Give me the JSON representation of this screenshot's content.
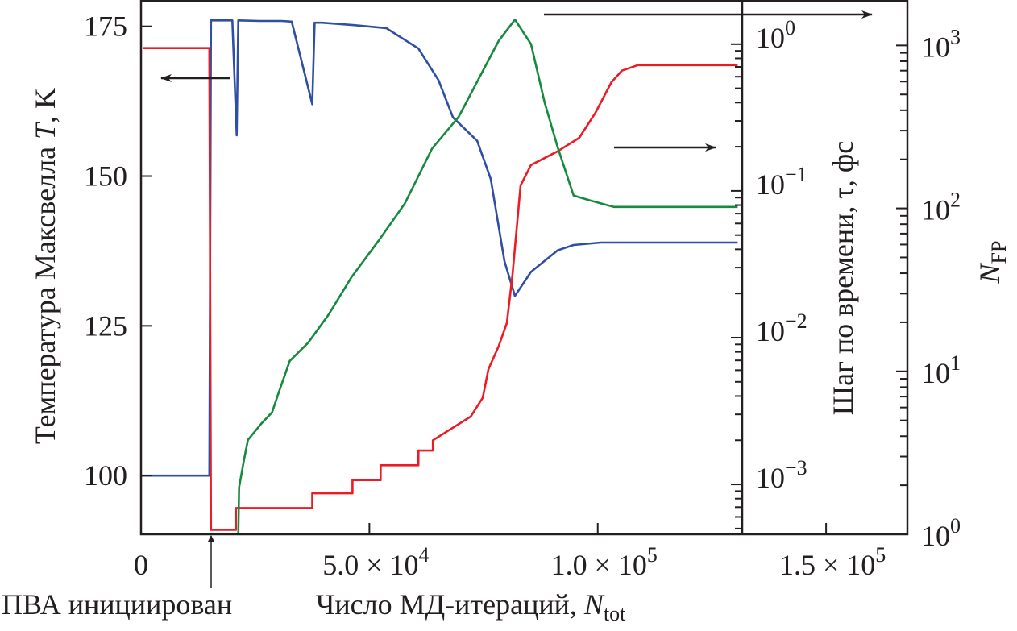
{
  "chart_data": {
    "type": "line",
    "x_axis": {
      "label": "Число МД-итераций, ",
      "label_var": "N",
      "label_sub": "tot",
      "range": [
        0,
        167800
      ],
      "ticks": [
        0,
        50000,
        100000,
        150000
      ],
      "tick_labels": [
        {
          "mant": "0",
          "exp": ""
        },
        {
          "mant": "5.0 × 10",
          "exp": "4"
        },
        {
          "mant": "1.0 × 10",
          "exp": "5"
        },
        {
          "mant": "1.5 × 10",
          "exp": "5"
        }
      ]
    },
    "y_left": {
      "label": "Температура Максвелла ",
      "label_var": "T",
      "label_unit": ", K",
      "range": [
        90.2,
        179.4
      ],
      "ticks": [
        100,
        125,
        150,
        175
      ],
      "tick_labels": [
        "100",
        "125",
        "150",
        "175"
      ]
    },
    "y_tau": {
      "label": "Шаг по времени, τ, фс",
      "scale": "log",
      "position_x": 131300,
      "range": [
        0.000457,
        2.0
      ],
      "ticks": [
        0.001,
        0.01,
        0.1,
        1
      ],
      "tick_labels": [
        {
          "mant": "10",
          "exp": "−3"
        },
        {
          "mant": "10",
          "exp": "−2"
        },
        {
          "mant": "10",
          "exp": "−1"
        },
        {
          "mant": "10",
          "exp": "0"
        }
      ]
    },
    "y_nfp": {
      "label_var": "N",
      "label_sub": "FP",
      "scale": "log",
      "range": [
        1,
        1900
      ],
      "ticks": [
        1,
        10,
        100,
        1000
      ],
      "tick_labels": [
        {
          "mant": "10",
          "exp": "0"
        },
        {
          "mant": "10",
          "exp": "1"
        },
        {
          "mant": "10",
          "exp": "2"
        },
        {
          "mant": "10",
          "exp": "3"
        }
      ]
    },
    "grid": false,
    "series": [
      {
        "axis": "y_left",
        "color": "#2e4fa3",
        "x": [
          0,
          14965,
          15317,
          20000,
          20950,
          21300,
          26000,
          30810,
          33000,
          37500,
          38000,
          39614,
          46656,
          53699,
          60741,
          65142,
          68311,
          73593,
          76586,
          79579,
          81868,
          85389,
          91199,
          94720,
          100706,
          130636
        ],
        "y": [
          100,
          100,
          176.0,
          176.0,
          156.8,
          176.0,
          175.9,
          175.9,
          175.8,
          162.0,
          175.6,
          175.6,
          175.2,
          174.7,
          171.3,
          166.0,
          159.8,
          155.9,
          149.5,
          135.8,
          130.0,
          134.0,
          137.6,
          138.5,
          138.9,
          138.9
        ]
      },
      {
        "axis": "y_tau",
        "color": "#ed1c24",
        "x": [
          528,
          14965,
          15317,
          20775,
          20776,
          37501,
          37502,
          46304,
          46305,
          52466,
          52467,
          60741,
          60742,
          63910,
          63911,
          72185,
          74826,
          76058,
          78347,
          80107,
          81340,
          83100,
          85389,
          91199,
          95953,
          99474,
          102995,
          105284,
          108805,
          130636
        ],
        "y": [
          0.94,
          0.94,
          0.00049,
          0.00049,
          0.00069,
          0.00069,
          0.00087,
          0.00087,
          0.00107,
          0.00107,
          0.00135,
          0.00135,
          0.0017,
          0.0017,
          0.002,
          0.0029,
          0.0039,
          0.0061,
          0.0088,
          0.0126,
          0.027,
          0.109,
          0.15,
          0.186,
          0.23,
          0.34,
          0.55,
          0.66,
          0.72,
          0.72
        ]
      },
      {
        "axis": "y_nfp",
        "color": "#168a3f",
        "x": [
          21300,
          21480,
          22535,
          23416,
          26409,
          28698,
          30282,
          32571,
          36620,
          41022,
          46128,
          51938,
          57748,
          63734,
          69544,
          78347,
          81868,
          85389,
          88382,
          91199,
          94720,
          98241,
          103523,
          130636
        ],
        "y": [
          1,
          1.94,
          2.85,
          3.8,
          4.8,
          5.6,
          7.6,
          11.6,
          15,
          22.2,
          38,
          63,
          107,
          233,
          364,
          1070,
          1440,
          1020,
          446,
          238,
          120,
          112,
          102,
          102
        ]
      }
    ],
    "annotations": {
      "initiation_label": "ПВА инициирован",
      "initiation_x": 15317
    }
  }
}
